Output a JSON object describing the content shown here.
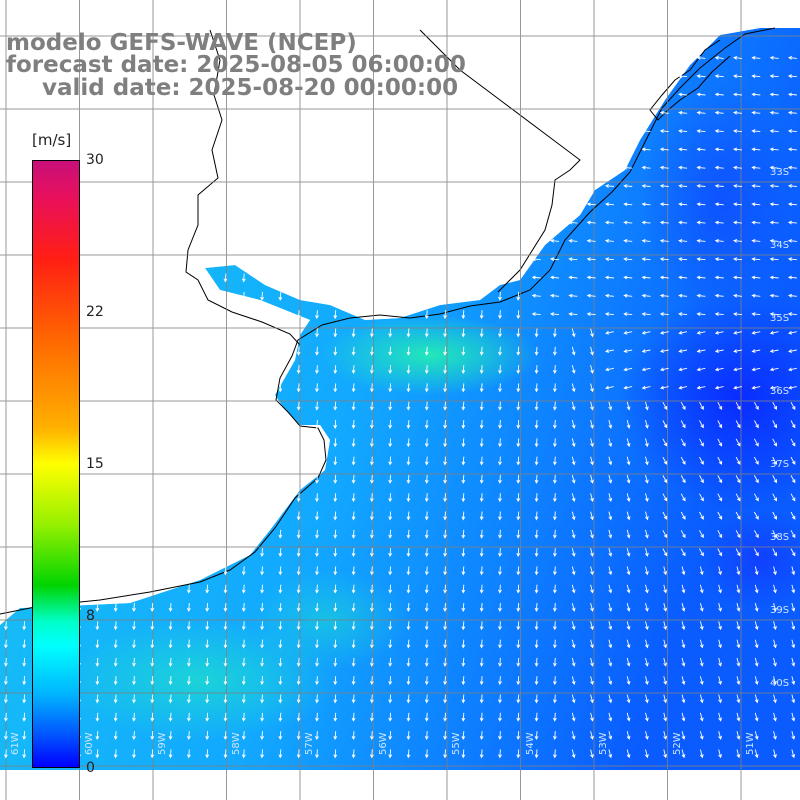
{
  "title": {
    "line1": "modelo GEFS-WAVE (NCEP)",
    "line2": "forecast date: 2025-08-05 06:00:00",
    "line3": "valid date: 2025-08-20 00:00:00"
  },
  "colorbar": {
    "unit": "[m/s]",
    "ticks": [
      "30",
      "22",
      "15",
      "8",
      "0"
    ],
    "tick_values": [
      30,
      22,
      15,
      8,
      0
    ],
    "range": [
      0,
      30
    ],
    "colors": [
      "#0000ff",
      "#00b4ff",
      "#00ffff",
      "#00d400",
      "#ffff00",
      "#ff6a00",
      "#ff1e14",
      "#c80f7a"
    ]
  },
  "map": {
    "variable": "wind speed and direction",
    "lat_labels": [
      "33S",
      "34S",
      "35S",
      "36S",
      "37S",
      "38S",
      "39S",
      "40S"
    ],
    "lon_labels": [
      "61W",
      "60W",
      "59W",
      "58W",
      "57W",
      "56W",
      "55W",
      "54W",
      "53W",
      "52W",
      "51W"
    ],
    "land_color": "#ffffff",
    "grid_color": "#808080",
    "coast_color": "#000000",
    "dominant_wind_direction": "south",
    "low_speed_color": "#0a3cff",
    "mid_speed_color": "#14b4ff",
    "high_speed_color": "#1ee6c8"
  }
}
